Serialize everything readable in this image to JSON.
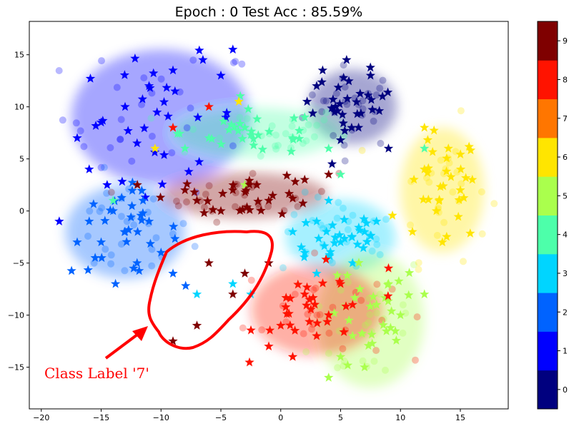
{
  "chart_data": {
    "type": "scatter",
    "title": "Epoch : 0  Test Acc : 85.59%",
    "xlim": [
      -21,
      19
    ],
    "ylim": [
      -19,
      18.2
    ],
    "xticks": [
      -20,
      -15,
      -10,
      -5,
      0,
      5,
      10,
      15
    ],
    "yticks": [
      -15,
      -10,
      -5,
      0,
      5,
      10,
      15
    ],
    "grid": false,
    "colorbar": {
      "ticks": [
        0,
        1,
        2,
        3,
        4,
        5,
        6,
        7,
        8,
        9
      ],
      "colors": [
        "#00007f",
        "#0000ff",
        "#0063ff",
        "#00d5ff",
        "#4dffaa",
        "#aaff4d",
        "#ffe500",
        "#ff7600",
        "#ff1300",
        "#7f0000"
      ]
    },
    "series": [
      {
        "class": 0,
        "color": "#00007f",
        "center": [
          6,
          10
        ],
        "spread": [
          3.7,
          3.6
        ],
        "star_sample": [
          [
            5.5,
            14.5
          ],
          [
            7.5,
            13
          ],
          [
            3,
            12
          ],
          [
            8.5,
            11
          ],
          [
            4.5,
            9.5
          ],
          [
            6.5,
            8
          ],
          [
            3.5,
            13.5
          ],
          [
            9,
            6
          ],
          [
            2.2,
            10.5
          ],
          [
            5,
            6.8
          ]
        ]
      },
      {
        "class": 1,
        "color": "#0000ff",
        "center": [
          -10,
          9
        ],
        "spread": [
          7.5,
          6.5
        ],
        "star_sample": [
          [
            -17,
            7
          ],
          [
            -15,
            8.5
          ],
          [
            -13,
            10
          ],
          [
            -11,
            12
          ],
          [
            -9,
            13.5
          ],
          [
            -6.5,
            14.5
          ],
          [
            -5,
            13
          ],
          [
            -4,
            15.5
          ],
          [
            -12,
            6.5
          ],
          [
            -18.5,
            -1
          ],
          [
            -16,
            4
          ],
          [
            -14.5,
            2.5
          ]
        ]
      },
      {
        "class": 2,
        "color": "#0063ff",
        "center": [
          -13,
          -2
        ],
        "spread": [
          5,
          4.5
        ],
        "star_sample": [
          [
            -16,
            -1
          ],
          [
            -15,
            -3
          ],
          [
            -13,
            -2
          ],
          [
            -12,
            -5
          ],
          [
            -10,
            -4
          ],
          [
            -14,
            0
          ],
          [
            -11,
            -1
          ],
          [
            -17,
            -3
          ],
          [
            -13.8,
            -7
          ],
          [
            -9,
            -6
          ],
          [
            -15.5,
            -4.5
          ],
          [
            -11.5,
            1
          ]
        ]
      },
      {
        "class": 3,
        "color": "#00d5ff",
        "center": [
          5,
          -2.5
        ],
        "spread": [
          4.6,
          3.6
        ],
        "star_sample": [
          [
            3,
            -1
          ],
          [
            5,
            -3
          ],
          [
            7,
            -2
          ],
          [
            2,
            -4
          ],
          [
            6,
            -5
          ],
          [
            4,
            1
          ],
          [
            8,
            -1
          ],
          [
            1,
            -2
          ],
          [
            3,
            -6
          ],
          [
            -4,
            -7
          ],
          [
            -7,
            -8
          ],
          [
            -2.5,
            -8
          ]
        ]
      },
      {
        "class": 4,
        "color": "#4dffaa",
        "center": [
          -2,
          7.5
        ],
        "spread": [
          7,
          2.4
        ],
        "star_sample": [
          [
            -3,
            8
          ],
          [
            1,
            7
          ],
          [
            -6,
            7
          ],
          [
            4,
            6
          ],
          [
            -8,
            6
          ],
          [
            12,
            6
          ],
          [
            -14,
            1
          ],
          [
            5,
            3.5
          ],
          [
            2,
            9
          ]
        ]
      },
      {
        "class": 5,
        "color": "#aaff4d",
        "center": [
          7.5,
          -10.5
        ],
        "spread": [
          4.5,
          6.5
        ],
        "star_sample": [
          [
            8,
            -9
          ],
          [
            6,
            -12
          ],
          [
            9,
            -7
          ],
          [
            5,
            -14
          ],
          [
            10,
            -10
          ],
          [
            7,
            -15
          ],
          [
            4,
            -16
          ],
          [
            12,
            -8
          ],
          [
            -3,
            2.5
          ]
        ]
      },
      {
        "class": 6,
        "color": "#ffe500",
        "center": [
          13.5,
          2
        ],
        "spread": [
          3.5,
          6
        ],
        "star_sample": [
          [
            12,
            4
          ],
          [
            14,
            6
          ],
          [
            13,
            0
          ],
          [
            15,
            2
          ],
          [
            11,
            -2
          ],
          [
            16,
            3
          ],
          [
            12,
            8
          ],
          [
            13.5,
            -3
          ],
          [
            -3.5,
            10.5
          ],
          [
            -10.5,
            6
          ]
        ]
      },
      {
        "class": 8,
        "color": "#ff1300",
        "center": [
          3,
          -9.5
        ],
        "spread": [
          5.5,
          4.4
        ],
        "star_sample": [
          [
            2,
            -8
          ],
          [
            4,
            -10
          ],
          [
            0,
            -11
          ],
          [
            6,
            -9
          ],
          [
            3,
            -12
          ],
          [
            -1,
            -13
          ],
          [
            5,
            -7
          ],
          [
            1,
            -14
          ],
          [
            -6,
            10
          ],
          [
            -9,
            8
          ],
          [
            9,
            -5.5
          ]
        ]
      },
      {
        "class": 9,
        "color": "#7f0000",
        "center": [
          -3,
          1.5
        ],
        "spread": [
          7,
          2.2
        ],
        "star_sample": [
          [
            -4,
            2
          ],
          [
            -1,
            1
          ],
          [
            -7,
            1
          ],
          [
            2,
            3
          ],
          [
            -5,
            0
          ],
          [
            4,
            3.5
          ],
          [
            -2,
            2.5
          ],
          [
            -8,
            2
          ],
          [
            -6,
            -5
          ],
          [
            -4,
            -8
          ],
          [
            -7,
            -11
          ],
          [
            -9,
            -12.5
          ],
          [
            -3,
            -6
          ],
          [
            -1,
            -5
          ]
        ]
      }
    ],
    "annotation": {
      "text": "Class Label '7'",
      "color": "#ff0000"
    }
  }
}
